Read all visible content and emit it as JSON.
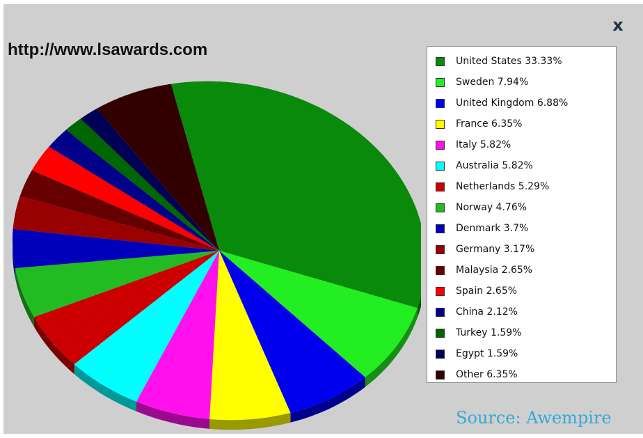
{
  "close_label": "x",
  "site_url": "http://www.lsawards.com",
  "source_text": "Source: Awempire",
  "chart_data": {
    "type": "pie",
    "title": "",
    "legend_position": "right",
    "slices": [
      {
        "label": "United States",
        "value": 33.33,
        "display": "United States 33.33%",
        "color": "#0a8a0a"
      },
      {
        "label": "Sweden",
        "value": 7.94,
        "display": "Sweden 7.94%",
        "color": "#22ee22"
      },
      {
        "label": "United Kingdom",
        "value": 6.88,
        "display": "United Kingdom 6.88%",
        "color": "#0000ee"
      },
      {
        "label": "France",
        "value": 6.35,
        "display": "France 6.35%",
        "color": "#ffff00"
      },
      {
        "label": "Italy",
        "value": 5.82,
        "display": "Italy 5.82%",
        "color": "#ff11ee"
      },
      {
        "label": "Australia",
        "value": 5.82,
        "display": "Australia 5.82%",
        "color": "#00ffff"
      },
      {
        "label": "Netherlands",
        "value": 5.29,
        "display": "Netherlands 5.29%",
        "color": "#cc0000"
      },
      {
        "label": "Norway",
        "value": 4.76,
        "display": "Norway 4.76%",
        "color": "#22bb22"
      },
      {
        "label": "Denmark",
        "value": 3.7,
        "display": "Denmark 3.7%",
        "color": "#0000bb"
      },
      {
        "label": "Germany",
        "value": 3.17,
        "display": "Germany 3.17%",
        "color": "#990000"
      },
      {
        "label": "Malaysia",
        "value": 2.65,
        "display": "Malaysia 2.65%",
        "color": "#660000"
      },
      {
        "label": "Spain",
        "value": 2.65,
        "display": "Spain 2.65%",
        "color": "#ff0000"
      },
      {
        "label": "China",
        "value": 2.12,
        "display": "China 2.12%",
        "color": "#000088"
      },
      {
        "label": "Turkey",
        "value": 1.59,
        "display": "Turkey 1.59%",
        "color": "#006600"
      },
      {
        "label": "Egypt",
        "value": 1.59,
        "display": "Egypt 1.59%",
        "color": "#000055"
      },
      {
        "label": "Other",
        "value": 6.35,
        "display": "Other 6.35%",
        "color": "#330000"
      }
    ]
  }
}
